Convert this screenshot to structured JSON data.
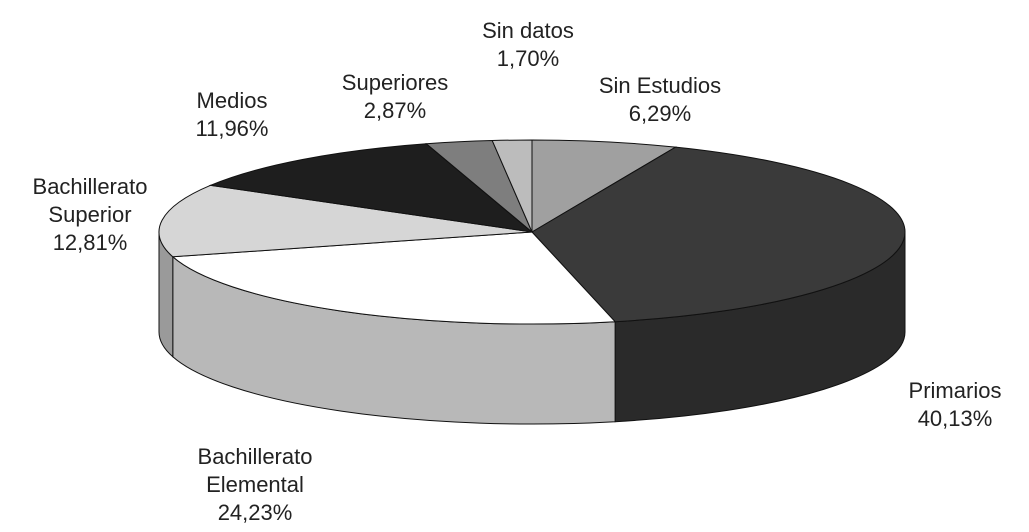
{
  "chart_data": {
    "type": "pie3d",
    "categories": [
      "Sin Estudios",
      "Primarios",
      "Bachillerato Elemental",
      "Bachillerato Superior",
      "Medios",
      "Superiores",
      "Sin datos"
    ],
    "values": [
      6.29,
      40.13,
      24.23,
      12.81,
      11.96,
      2.87,
      1.7
    ],
    "value_labels": [
      "6,29%",
      "40,13%",
      "24,23%",
      "12,81%",
      "11,96%",
      "2,87%",
      "1,70%"
    ],
    "colors": [
      "#a0a0a0",
      "#3a3a3a",
      "#ffffff",
      "#d6d6d6",
      "#1e1e1e",
      "#7e7e7e",
      "#bcbcbc"
    ]
  }
}
